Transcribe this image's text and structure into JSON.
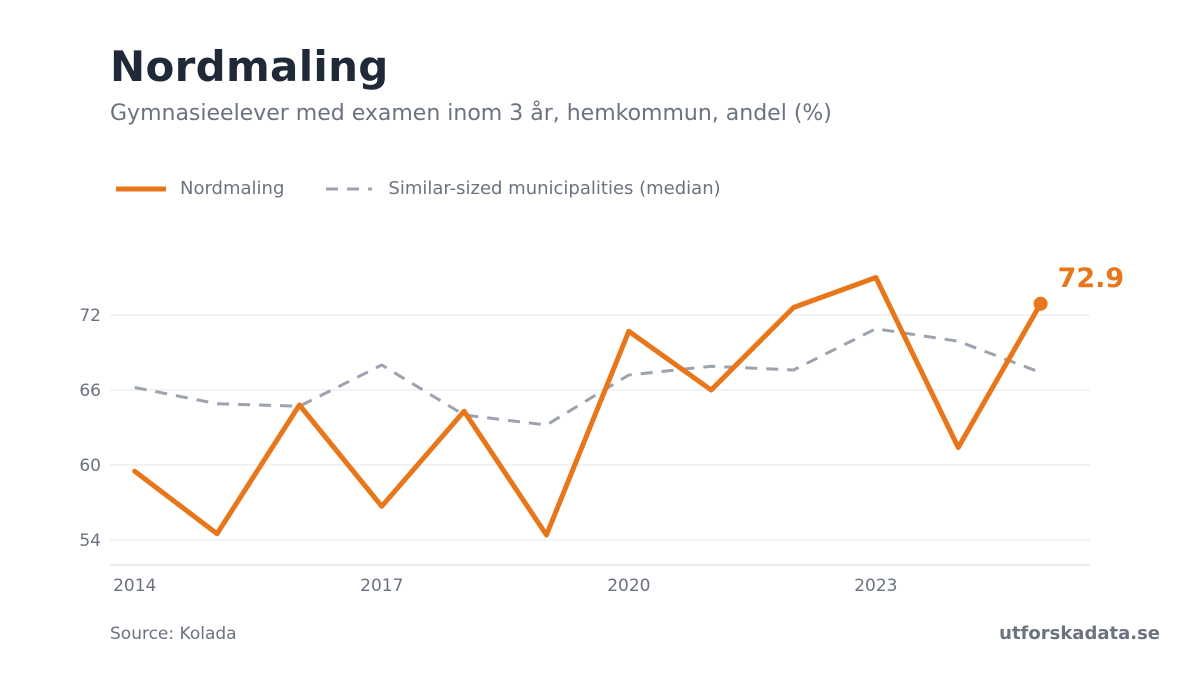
{
  "header": {
    "title": "Nordmaling",
    "subtitle": "Gymnasieelever med examen inom 3 år, hemkommun, andel (%)"
  },
  "footer": {
    "source": "Source: Kolada",
    "brand": "utforskadata.se"
  },
  "colors": {
    "primary": "#e8761a",
    "median": "#9ca3af",
    "grid": "#e5e7eb",
    "text_muted": "#6b7280"
  },
  "chart_data": {
    "type": "line",
    "x": [
      2014,
      2015,
      2016,
      2017,
      2018,
      2019,
      2020,
      2021,
      2022,
      2023,
      2024,
      2025
    ],
    "x_ticks": [
      "2014",
      "2017",
      "2020",
      "2023"
    ],
    "y_ticks": [
      "54",
      "60",
      "66",
      "72"
    ],
    "ylim": [
      52,
      80
    ],
    "xlim": [
      2013.7,
      2025.6
    ],
    "grid": "horizontal",
    "legend_placement": "top-left",
    "series": [
      {
        "name": "Nordmaling",
        "style": "solid",
        "values": [
          59.5,
          54.5,
          64.8,
          56.7,
          64.3,
          54.4,
          70.7,
          66.0,
          72.6,
          75.0,
          61.4,
          72.9
        ]
      },
      {
        "name": "Similar-sized municipalities (median)",
        "style": "dashed",
        "values": [
          66.2,
          64.9,
          64.7,
          68.0,
          64.0,
          63.2,
          67.2,
          67.9,
          67.6,
          70.9,
          69.9,
          67.4
        ]
      }
    ],
    "end_label": "72.9"
  }
}
